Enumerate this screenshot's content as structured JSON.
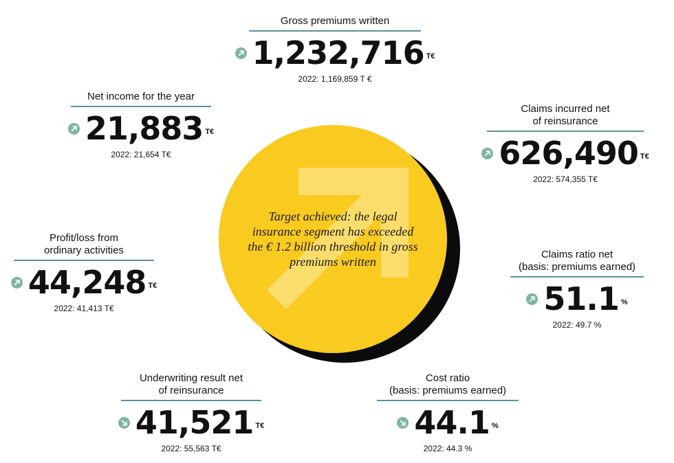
{
  "colors": {
    "accent_yellow": "#f9ca1f",
    "arrow_green": "#7fb5a0",
    "rule_teal": "#5f8f99"
  },
  "center": {
    "statement": "Target achieved: the legal insurance segment has exceeded the € 1.2 billion threshold in gross premiums written",
    "icon": "up-right-arrow-icon"
  },
  "kpis": {
    "gross_premiums": {
      "label": "Gross premiums written",
      "value": "1,232,716",
      "unit": "T€",
      "prev": "2022: 1,169,859 T €",
      "trend": "up"
    },
    "net_income": {
      "label": "Net income for the year",
      "value": "21,883",
      "unit": "T€",
      "prev": "2022: 21,654 T€",
      "trend": "up"
    },
    "claims_incurred": {
      "label_line1": "Claims incurred net",
      "label_line2": "of reinsurance",
      "value": "626,490",
      "unit": "T€",
      "prev": "2022: 574,355 T€",
      "trend": "up"
    },
    "profit_loss": {
      "label_line1": "Profit/loss from",
      "label_line2": "ordinary activities",
      "value": "44,248",
      "unit": "T€",
      "prev": "2022: 41,413  T€",
      "trend": "up"
    },
    "claims_ratio": {
      "label_line1": "Claims ratio net",
      "label_line2": "(basis: premiums earned)",
      "value": "51.1",
      "unit": "%",
      "prev": "2022: 49.7 %",
      "trend": "up"
    },
    "underwriting": {
      "label_line1": "Underwriting result net",
      "label_line2": "of reinsurance",
      "value": "41,521",
      "unit": "T€",
      "prev": "2022: 55,563 T€",
      "trend": "down"
    },
    "cost_ratio": {
      "label_line1": "Cost ratio",
      "label_line2": "(basis: premiums earned)",
      "value": "44.1",
      "unit": "%",
      "prev": "2022: 44.3 %",
      "trend": "down"
    }
  }
}
